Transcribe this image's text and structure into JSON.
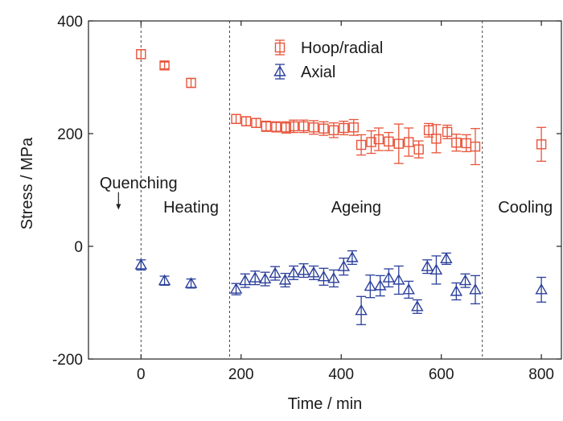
{
  "chart_data": {
    "type": "scatter",
    "xlabel": "Time / min",
    "ylabel": "Stress / MPa",
    "xlim": [
      -105,
      840
    ],
    "ylim": [
      -200,
      400
    ],
    "x_ticks": [
      0,
      200,
      400,
      600,
      800
    ],
    "y_ticks": [
      -200,
      0,
      200,
      400
    ],
    "x_tick_labels": [
      "0",
      "200",
      "400",
      "600",
      "800"
    ],
    "y_tick_labels": [
      "-200",
      "0",
      "200",
      "400"
    ],
    "grid": false,
    "legend_position": "top-center",
    "stage_boundaries": [
      0,
      177,
      682
    ],
    "annotations": [
      {
        "id": "quenching",
        "text": "Quenching",
        "x": -5,
        "y": 113,
        "arrow": {
          "x": -45,
          "from_y": 96,
          "to_y": 65
        }
      },
      {
        "id": "heating",
        "text": "Heating",
        "x": 100,
        "y": 70
      },
      {
        "id": "ageing",
        "text": "Ageing",
        "x": 430,
        "y": 70
      },
      {
        "id": "cooling",
        "text": "Cooling",
        "x": 768,
        "y": 70
      }
    ],
    "series": [
      {
        "name": "Hoop/radial",
        "color": "#e8543a",
        "marker": "square",
        "points": [
          {
            "x": 0,
            "y": 341,
            "err": 8
          },
          {
            "x": 47,
            "y": 321,
            "err": 6
          },
          {
            "x": 100,
            "y": 290,
            "err": 8
          },
          {
            "x": 190,
            "y": 226,
            "err": 8
          },
          {
            "x": 210,
            "y": 222,
            "err": 8
          },
          {
            "x": 230,
            "y": 219,
            "err": 8
          },
          {
            "x": 250,
            "y": 213,
            "err": 9
          },
          {
            "x": 270,
            "y": 212,
            "err": 9
          },
          {
            "x": 290,
            "y": 211,
            "err": 10
          },
          {
            "x": 305,
            "y": 213,
            "err": 11
          },
          {
            "x": 325,
            "y": 213,
            "err": 11
          },
          {
            "x": 345,
            "y": 211,
            "err": 12
          },
          {
            "x": 365,
            "y": 209,
            "err": 12
          },
          {
            "x": 385,
            "y": 206,
            "err": 13
          },
          {
            "x": 405,
            "y": 210,
            "err": 12
          },
          {
            "x": 425,
            "y": 211,
            "err": 14
          },
          {
            "x": 440,
            "y": 180,
            "err": 18
          },
          {
            "x": 460,
            "y": 185,
            "err": 20
          },
          {
            "x": 475,
            "y": 190,
            "err": 20
          },
          {
            "x": 495,
            "y": 186,
            "err": 16
          },
          {
            "x": 515,
            "y": 182,
            "err": 35
          },
          {
            "x": 535,
            "y": 185,
            "err": 25
          },
          {
            "x": 555,
            "y": 172,
            "err": 15
          },
          {
            "x": 575,
            "y": 206,
            "err": 12
          },
          {
            "x": 590,
            "y": 191,
            "err": 25
          },
          {
            "x": 612,
            "y": 203,
            "err": 12
          },
          {
            "x": 630,
            "y": 184,
            "err": 15
          },
          {
            "x": 650,
            "y": 183,
            "err": 15
          },
          {
            "x": 668,
            "y": 177,
            "err": 32
          },
          {
            "x": 800,
            "y": 181,
            "err": 30
          }
        ]
      },
      {
        "name": "Axial",
        "color": "#2a3f9b",
        "marker": "triangle",
        "points": [
          {
            "x": 0,
            "y": -33,
            "err": 9
          },
          {
            "x": 47,
            "y": -61,
            "err": 8
          },
          {
            "x": 100,
            "y": -66,
            "err": 8
          },
          {
            "x": 190,
            "y": -76,
            "err": 10
          },
          {
            "x": 208,
            "y": -61,
            "err": 12
          },
          {
            "x": 228,
            "y": -56,
            "err": 12
          },
          {
            "x": 248,
            "y": -58,
            "err": 12
          },
          {
            "x": 268,
            "y": -48,
            "err": 12
          },
          {
            "x": 288,
            "y": -60,
            "err": 12
          },
          {
            "x": 305,
            "y": -47,
            "err": 12
          },
          {
            "x": 325,
            "y": -43,
            "err": 12
          },
          {
            "x": 345,
            "y": -47,
            "err": 12
          },
          {
            "x": 365,
            "y": -54,
            "err": 15
          },
          {
            "x": 385,
            "y": -57,
            "err": 15
          },
          {
            "x": 405,
            "y": -36,
            "err": 15
          },
          {
            "x": 422,
            "y": -20,
            "err": 12
          },
          {
            "x": 440,
            "y": -114,
            "err": 25
          },
          {
            "x": 458,
            "y": -71,
            "err": 20
          },
          {
            "x": 478,
            "y": -70,
            "err": 18
          },
          {
            "x": 495,
            "y": -56,
            "err": 16
          },
          {
            "x": 515,
            "y": -60,
            "err": 25
          },
          {
            "x": 535,
            "y": -77,
            "err": 15
          },
          {
            "x": 552,
            "y": -107,
            "err": 12
          },
          {
            "x": 572,
            "y": -36,
            "err": 12
          },
          {
            "x": 590,
            "y": -42,
            "err": 25
          },
          {
            "x": 610,
            "y": -22,
            "err": 10
          },
          {
            "x": 630,
            "y": -80,
            "err": 15
          },
          {
            "x": 648,
            "y": -61,
            "err": 12
          },
          {
            "x": 668,
            "y": -77,
            "err": 25
          },
          {
            "x": 800,
            "y": -77,
            "err": 22
          }
        ]
      }
    ]
  }
}
